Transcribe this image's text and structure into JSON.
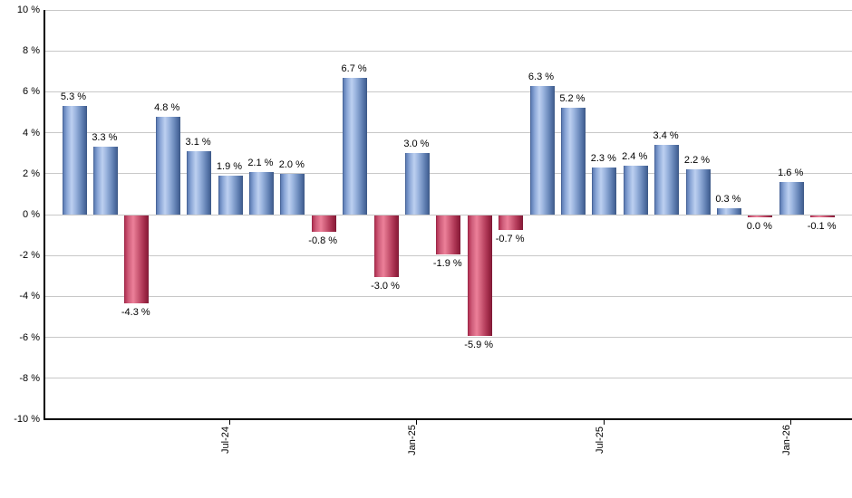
{
  "chart_data": {
    "type": "bar",
    "title": "",
    "xlabel": "",
    "ylabel": "",
    "grid": true,
    "ylim": [
      -10,
      10
    ],
    "value_suffix": " %",
    "y_ticks": [
      {
        "value": 10,
        "label": "10 %"
      },
      {
        "value": 8,
        "label": "8 %"
      },
      {
        "value": 6,
        "label": "6 %"
      },
      {
        "value": 4,
        "label": "4 %"
      },
      {
        "value": 2,
        "label": "2 %"
      },
      {
        "value": 0,
        "label": "0 %"
      },
      {
        "value": -2,
        "label": "-2 %"
      },
      {
        "value": -4,
        "label": "-4 %"
      },
      {
        "value": -6,
        "label": "-6 %"
      },
      {
        "value": -8,
        "label": "-8 %"
      },
      {
        "value": -10,
        "label": "-10 %"
      }
    ],
    "x_ticks": [
      {
        "label": "Jul-24",
        "bar_index": 5
      },
      {
        "label": "Jan-25",
        "bar_index": 11
      },
      {
        "label": "Jul-25",
        "bar_index": 17
      },
      {
        "label": "Jan-26",
        "bar_index": 23
      }
    ],
    "values": [
      5.3,
      3.3,
      -4.3,
      4.8,
      3.1,
      1.9,
      2.1,
      2.0,
      -0.8,
      6.7,
      -3.0,
      3.0,
      -1.9,
      -5.9,
      -0.7,
      6.3,
      5.2,
      2.3,
      2.4,
      3.4,
      2.2,
      0.3,
      0.0,
      1.6,
      -0.1
    ],
    "labels": [
      "5.3 %",
      "3.3 %",
      "-4.3 %",
      "4.8 %",
      "3.1 %",
      "1.9 %",
      "2.1 %",
      "2.0 %",
      "-0.8 %",
      "6.7 %",
      "-3.0 %",
      "3.0 %",
      "-1.9 %",
      "-5.9 %",
      "-0.7 %",
      "6.3 %",
      "5.2 %",
      "2.3 %",
      "2.4 %",
      "3.4 %",
      "2.2 %",
      "0.3 %",
      "0.0 %",
      "1.6 %",
      "-0.1 %"
    ],
    "negative_bar_indices": [
      2,
      8,
      10,
      12,
      13,
      14,
      22,
      24
    ],
    "colors": {
      "positive_bar": "#7e9dd0",
      "positive_highlight": "#bdd0f0",
      "positive_edge": "#44608f",
      "negative_bar": "#d05f7a",
      "negative_highlight": "#ec8099",
      "negative_edge": "#8e1f3e",
      "gridline": "#c8c8c8",
      "axis": "#000000",
      "label_text": "#000000"
    },
    "legend": null
  }
}
